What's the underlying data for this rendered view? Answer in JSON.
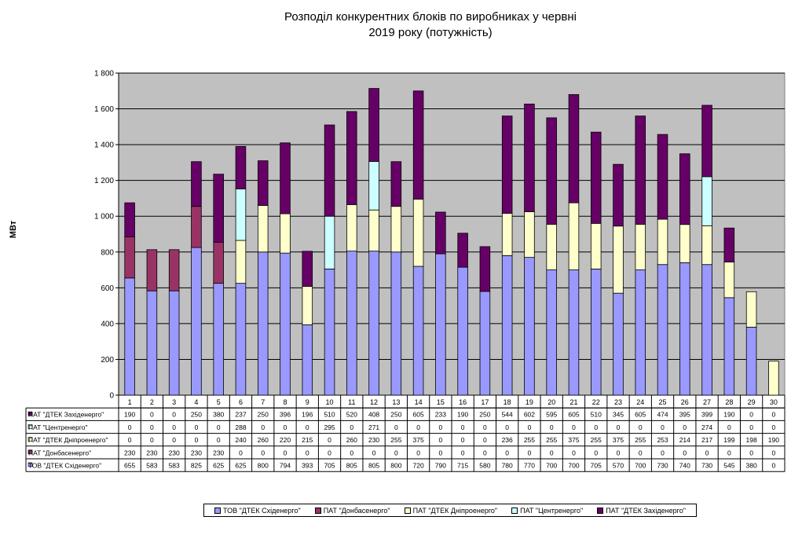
{
  "title": "Розподіл  конкурентних  блоків  по  виробниках  у червні\n2019  року  (потужність)",
  "chart_data": {
    "type": "bar",
    "stacked": true,
    "title": "Розподіл  конкурентних  блоків  по  виробниках  у червні 2019  року  (потужність)",
    "xlabel": "",
    "ylabel": "МВт",
    "ylim": [
      0,
      1800
    ],
    "yticks": [
      0,
      200,
      400,
      600,
      800,
      1000,
      1200,
      1400,
      1600,
      1800
    ],
    "ytick_labels": [
      "0",
      "200",
      "400",
      "600",
      "800",
      "1 000",
      "1 200",
      "1 400",
      "1 600",
      "1 800"
    ],
    "grid": true,
    "legend_position": "bottom",
    "categories": [
      "1",
      "2",
      "3",
      "4",
      "5",
      "6",
      "7",
      "8",
      "9",
      "10",
      "11",
      "12",
      "13",
      "14",
      "15",
      "16",
      "17",
      "18",
      "19",
      "20",
      "21",
      "22",
      "23",
      "24",
      "25",
      "26",
      "27",
      "28",
      "29",
      "30"
    ],
    "series": [
      {
        "name": "ТОВ \"ДТЕК Східенерго\"",
        "color": "#9999ff",
        "values": [
          655,
          583,
          583,
          825,
          625,
          625,
          800,
          794,
          393,
          705,
          805,
          805,
          800,
          720,
          790,
          715,
          580,
          780,
          770,
          700,
          700,
          705,
          570,
          700,
          730,
          740,
          730,
          545,
          380,
          0
        ]
      },
      {
        "name": "ПАТ \"Донбасенерго\"",
        "color": "#993366",
        "values": [
          230,
          230,
          230,
          230,
          230,
          0,
          0,
          0,
          0,
          0,
          0,
          0,
          0,
          0,
          0,
          0,
          0,
          0,
          0,
          0,
          0,
          0,
          0,
          0,
          0,
          0,
          0,
          0,
          0,
          0
        ]
      },
      {
        "name": "ПАТ \"ДТЕК Дніпроенерго\"",
        "color": "#ffffcc",
        "values": [
          0,
          0,
          0,
          0,
          0,
          240,
          260,
          220,
          215,
          0,
          260,
          230,
          255,
          375,
          0,
          0,
          0,
          236,
          255,
          255,
          375,
          255,
          375,
          255,
          253,
          214,
          217,
          199,
          198,
          190
        ]
      },
      {
        "name": "ПАТ \"Центренерго\"",
        "color": "#ccffff",
        "values": [
          0,
          0,
          0,
          0,
          0,
          288,
          0,
          0,
          0,
          295,
          0,
          271,
          0,
          0,
          0,
          0,
          0,
          0,
          0,
          0,
          0,
          0,
          0,
          0,
          0,
          0,
          274,
          0,
          0,
          0
        ]
      },
      {
        "name": "ПАТ \"ДТЕК Західенерго\"",
        "color": "#660066",
        "values": [
          190,
          0,
          0,
          250,
          380,
          237,
          250,
          396,
          196,
          510,
          520,
          408,
          250,
          605,
          233,
          190,
          250,
          544,
          602,
          595,
          605,
          510,
          345,
          605,
          474,
          395,
          399,
          190,
          0,
          0
        ]
      }
    ],
    "table_row_order": [
      4,
      3,
      2,
      1,
      0
    ]
  }
}
